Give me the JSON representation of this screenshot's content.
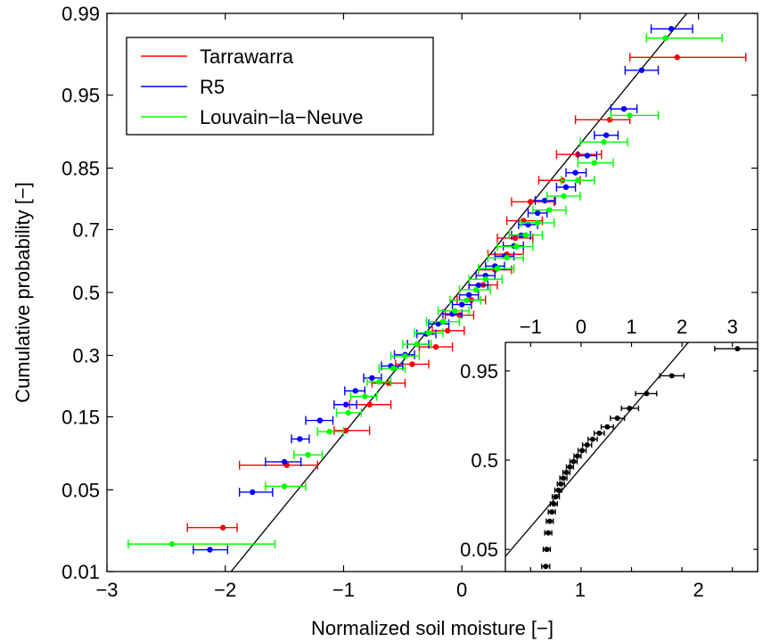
{
  "chart_data": [
    {
      "type": "scatter",
      "title": "",
      "xlabel": "Normalized soil moisture [−]",
      "ylabel": "Cumulative probability [−]",
      "xlim": [
        -3,
        2.5
      ],
      "ylim": [
        0.01,
        0.99
      ],
      "yscale": "normal-probability",
      "x_ticks": [
        -3,
        -2,
        -1,
        0,
        1,
        2
      ],
      "x_tick_labels": [
        "−3",
        "−2",
        "−1",
        "0",
        "1",
        "2"
      ],
      "y_ticks": [
        0.01,
        0.05,
        0.15,
        0.3,
        0.5,
        0.7,
        0.85,
        0.95,
        0.99
      ],
      "y_tick_labels": [
        "0.01",
        "0.05",
        "0.15",
        "0.3",
        "0.5",
        "0.7",
        "0.85",
        "0.95",
        "0.99"
      ],
      "grid": false,
      "legend_position": "top-left",
      "reference_line": {
        "description": "",
        "points": [
          [
            -2.13,
            0.0055
          ],
          [
            2.25,
            0.997
          ]
        ]
      },
      "error_bars": "horizontal",
      "series": [
        {
          "name": "Tarrawarra",
          "color": "#ff0000",
          "points": [
            {
              "x": -2.02,
              "p": 0.025,
              "lo": -2.32,
              "hi": -1.9
            },
            {
              "x": -1.48,
              "p": 0.075,
              "lo": -1.88,
              "hi": -1.22
            },
            {
              "x": -0.98,
              "p": 0.125,
              "lo": -1.08,
              "hi": -0.78
            },
            {
              "x": -0.78,
              "p": 0.175,
              "lo": -0.95,
              "hi": -0.6
            },
            {
              "x": -0.62,
              "p": 0.225,
              "lo": -0.76,
              "hi": -0.48
            },
            {
              "x": -0.42,
              "p": 0.275,
              "lo": -0.56,
              "hi": -0.28
            },
            {
              "x": -0.22,
              "p": 0.325,
              "lo": -0.36,
              "hi": -0.08
            },
            {
              "x": -0.12,
              "p": 0.375,
              "lo": -0.25,
              "hi": 0.02
            },
            {
              "x": -0.02,
              "p": 0.425,
              "lo": -0.14,
              "hi": 0.1
            },
            {
              "x": 0.08,
              "p": 0.475,
              "lo": -0.04,
              "hi": 0.2
            },
            {
              "x": 0.18,
              "p": 0.525,
              "lo": 0.06,
              "hi": 0.3
            },
            {
              "x": 0.28,
              "p": 0.575,
              "lo": 0.14,
              "hi": 0.42
            },
            {
              "x": 0.38,
              "p": 0.625,
              "lo": 0.22,
              "hi": 0.52
            },
            {
              "x": 0.45,
              "p": 0.675,
              "lo": 0.3,
              "hi": 0.6
            },
            {
              "x": 0.52,
              "p": 0.725,
              "lo": 0.38,
              "hi": 0.68
            },
            {
              "x": 0.58,
              "p": 0.775,
              "lo": 0.42,
              "hi": 0.78
            },
            {
              "x": 0.85,
              "p": 0.825,
              "lo": 0.65,
              "hi": 1.0
            },
            {
              "x": 0.98,
              "p": 0.875,
              "lo": 0.8,
              "hi": 1.18
            },
            {
              "x": 1.25,
              "p": 0.925,
              "lo": 0.96,
              "hi": 1.42
            },
            {
              "x": 1.82,
              "p": 0.975,
              "lo": 1.42,
              "hi": 2.4
            }
          ]
        },
        {
          "name": "R5",
          "color": "#0000ff",
          "points": [
            {
              "x": -2.13,
              "p": 0.016,
              "lo": -2.27,
              "hi": -1.98
            },
            {
              "x": -1.77,
              "p": 0.048,
              "lo": -1.88,
              "hi": -1.6
            },
            {
              "x": -1.5,
              "p": 0.079,
              "lo": -1.66,
              "hi": -1.36
            },
            {
              "x": -1.37,
              "p": 0.111,
              "lo": -1.44,
              "hi": -1.29
            },
            {
              "x": -1.2,
              "p": 0.143,
              "lo": -1.32,
              "hi": -1.09
            },
            {
              "x": -0.98,
              "p": 0.175,
              "lo": -1.08,
              "hi": -0.89
            },
            {
              "x": -0.9,
              "p": 0.206,
              "lo": -0.99,
              "hi": -0.82
            },
            {
              "x": -0.76,
              "p": 0.238,
              "lo": -0.83,
              "hi": -0.68
            },
            {
              "x": -0.6,
              "p": 0.27,
              "lo": -0.68,
              "hi": -0.5
            },
            {
              "x": -0.48,
              "p": 0.302,
              "lo": -0.57,
              "hi": -0.4
            },
            {
              "x": -0.38,
              "p": 0.333,
              "lo": -0.46,
              "hi": -0.28
            },
            {
              "x": -0.3,
              "p": 0.365,
              "lo": -0.38,
              "hi": -0.22
            },
            {
              "x": -0.2,
              "p": 0.397,
              "lo": -0.28,
              "hi": -0.11
            },
            {
              "x": -0.08,
              "p": 0.429,
              "lo": -0.16,
              "hi": 0.0
            },
            {
              "x": 0.0,
              "p": 0.46,
              "lo": -0.08,
              "hi": 0.08
            },
            {
              "x": 0.06,
              "p": 0.492,
              "lo": -0.02,
              "hi": 0.14
            },
            {
              "x": 0.14,
              "p": 0.524,
              "lo": 0.06,
              "hi": 0.22
            },
            {
              "x": 0.2,
              "p": 0.556,
              "lo": 0.12,
              "hi": 0.28
            },
            {
              "x": 0.28,
              "p": 0.587,
              "lo": 0.2,
              "hi": 0.36
            },
            {
              "x": 0.36,
              "p": 0.619,
              "lo": 0.28,
              "hi": 0.44
            },
            {
              "x": 0.44,
              "p": 0.651,
              "lo": 0.35,
              "hi": 0.52
            },
            {
              "x": 0.5,
              "p": 0.683,
              "lo": 0.42,
              "hi": 0.58
            },
            {
              "x": 0.56,
              "p": 0.714,
              "lo": 0.48,
              "hi": 0.64
            },
            {
              "x": 0.64,
              "p": 0.746,
              "lo": 0.56,
              "hi": 0.72
            },
            {
              "x": 0.7,
              "p": 0.778,
              "lo": 0.62,
              "hi": 0.79
            },
            {
              "x": 0.88,
              "p": 0.81,
              "lo": 0.8,
              "hi": 0.96
            },
            {
              "x": 0.96,
              "p": 0.841,
              "lo": 0.88,
              "hi": 1.05
            },
            {
              "x": 1.06,
              "p": 0.873,
              "lo": 0.98,
              "hi": 1.14
            },
            {
              "x": 1.22,
              "p": 0.905,
              "lo": 1.12,
              "hi": 1.32
            },
            {
              "x": 1.37,
              "p": 0.937,
              "lo": 1.26,
              "hi": 1.48
            },
            {
              "x": 1.52,
              "p": 0.968,
              "lo": 1.38,
              "hi": 1.66
            },
            {
              "x": 1.77,
              "p": 0.986,
              "lo": 1.6,
              "hi": 1.95
            }
          ]
        },
        {
          "name": "Louvain−la−Neuve",
          "color": "#00ff00",
          "points": [
            {
              "x": -2.45,
              "p": 0.018,
              "lo": -2.82,
              "hi": -1.58
            },
            {
              "x": -1.5,
              "p": 0.053,
              "lo": -1.66,
              "hi": -1.32
            },
            {
              "x": -1.3,
              "p": 0.088,
              "lo": -1.42,
              "hi": -1.18
            },
            {
              "x": -1.12,
              "p": 0.123,
              "lo": -1.22,
              "hi": -1.0
            },
            {
              "x": -0.96,
              "p": 0.158,
              "lo": -1.06,
              "hi": -0.85
            },
            {
              "x": -0.82,
              "p": 0.193,
              "lo": -0.94,
              "hi": -0.72
            },
            {
              "x": -0.7,
              "p": 0.228,
              "lo": -0.8,
              "hi": -0.6
            },
            {
              "x": -0.58,
              "p": 0.263,
              "lo": -0.7,
              "hi": -0.48
            },
            {
              "x": -0.48,
              "p": 0.298,
              "lo": -0.6,
              "hi": -0.36
            },
            {
              "x": -0.38,
              "p": 0.333,
              "lo": -0.5,
              "hi": -0.26
            },
            {
              "x": -0.28,
              "p": 0.368,
              "lo": -0.4,
              "hi": -0.16
            },
            {
              "x": -0.16,
              "p": 0.404,
              "lo": -0.3,
              "hi": -0.02
            },
            {
              "x": -0.06,
              "p": 0.439,
              "lo": -0.2,
              "hi": 0.06
            },
            {
              "x": 0.04,
              "p": 0.474,
              "lo": -0.1,
              "hi": 0.16
            },
            {
              "x": 0.12,
              "p": 0.509,
              "lo": -0.02,
              "hi": 0.24
            },
            {
              "x": 0.2,
              "p": 0.544,
              "lo": 0.06,
              "hi": 0.34
            },
            {
              "x": 0.3,
              "p": 0.579,
              "lo": 0.14,
              "hi": 0.44
            },
            {
              "x": 0.38,
              "p": 0.614,
              "lo": 0.22,
              "hi": 0.52
            },
            {
              "x": 0.46,
              "p": 0.649,
              "lo": 0.3,
              "hi": 0.6
            },
            {
              "x": 0.54,
              "p": 0.684,
              "lo": 0.4,
              "hi": 0.68
            },
            {
              "x": 0.64,
              "p": 0.719,
              "lo": 0.5,
              "hi": 0.78
            },
            {
              "x": 0.74,
              "p": 0.754,
              "lo": 0.6,
              "hi": 0.88
            },
            {
              "x": 0.86,
              "p": 0.789,
              "lo": 0.72,
              "hi": 1.0
            },
            {
              "x": 0.98,
              "p": 0.825,
              "lo": 0.84,
              "hi": 1.12
            },
            {
              "x": 1.12,
              "p": 0.86,
              "lo": 0.98,
              "hi": 1.28
            },
            {
              "x": 1.2,
              "p": 0.895,
              "lo": 1.0,
              "hi": 1.4
            },
            {
              "x": 1.42,
              "p": 0.93,
              "lo": 1.26,
              "hi": 1.66
            },
            {
              "x": 1.72,
              "p": 0.983,
              "lo": 1.56,
              "hi": 2.2
            }
          ]
        }
      ]
    },
    {
      "type": "scatter",
      "title": "",
      "xlabel": "",
      "ylabel": "",
      "xlim": [
        -1.5,
        3.5
      ],
      "ylim": [
        0.02,
        0.985
      ],
      "yscale": "normal-probability",
      "x_axis_position": "top",
      "x_ticks": [
        -1,
        0,
        1,
        2,
        3
      ],
      "x_tick_labels": [
        "−1",
        "0",
        "1",
        "2",
        "3"
      ],
      "y_ticks": [
        0.05,
        0.5,
        0.95
      ],
      "y_tick_labels": [
        "0.05",
        "0.5",
        "0.95"
      ],
      "grid": false,
      "reference_line": {
        "description": "",
        "points": [
          [
            -1.5,
            0.038
          ],
          [
            2.5,
            0.995
          ]
        ]
      },
      "error_bars": "horizontal",
      "series": [
        {
          "name": "",
          "color": "#000000",
          "points": [
            {
              "x": -0.7,
              "p": 0.025,
              "lo": -0.78,
              "hi": -0.62
            },
            {
              "x": -0.68,
              "p": 0.05,
              "lo": -0.75,
              "hi": -0.61
            },
            {
              "x": -0.65,
              "p": 0.09,
              "lo": -0.72,
              "hi": -0.58
            },
            {
              "x": -0.62,
              "p": 0.13,
              "lo": -0.69,
              "hi": -0.55
            },
            {
              "x": -0.58,
              "p": 0.17,
              "lo": -0.65,
              "hi": -0.51
            },
            {
              "x": -0.54,
              "p": 0.21,
              "lo": -0.61,
              "hi": -0.47
            },
            {
              "x": -0.5,
              "p": 0.25,
              "lo": -0.57,
              "hi": -0.43
            },
            {
              "x": -0.45,
              "p": 0.29,
              "lo": -0.52,
              "hi": -0.38
            },
            {
              "x": -0.4,
              "p": 0.33,
              "lo": -0.47,
              "hi": -0.33
            },
            {
              "x": -0.35,
              "p": 0.37,
              "lo": -0.42,
              "hi": -0.28
            },
            {
              "x": -0.29,
              "p": 0.41,
              "lo": -0.36,
              "hi": -0.22
            },
            {
              "x": -0.22,
              "p": 0.45,
              "lo": -0.29,
              "hi": -0.15
            },
            {
              "x": -0.15,
              "p": 0.49,
              "lo": -0.22,
              "hi": -0.08
            },
            {
              "x": -0.07,
              "p": 0.53,
              "lo": -0.14,
              "hi": 0.0
            },
            {
              "x": 0.02,
              "p": 0.57,
              "lo": -0.06,
              "hi": 0.1
            },
            {
              "x": 0.12,
              "p": 0.61,
              "lo": 0.03,
              "hi": 0.21
            },
            {
              "x": 0.23,
              "p": 0.65,
              "lo": 0.14,
              "hi": 0.32
            },
            {
              "x": 0.36,
              "p": 0.69,
              "lo": 0.26,
              "hi": 0.46
            },
            {
              "x": 0.52,
              "p": 0.73,
              "lo": 0.4,
              "hi": 0.64
            },
            {
              "x": 0.72,
              "p": 0.78,
              "lo": 0.58,
              "hi": 0.86
            },
            {
              "x": 0.96,
              "p": 0.83,
              "lo": 0.8,
              "hi": 1.14
            },
            {
              "x": 1.3,
              "p": 0.89,
              "lo": 1.08,
              "hi": 1.5
            },
            {
              "x": 1.8,
              "p": 0.94,
              "lo": 1.56,
              "hi": 2.04
            },
            {
              "x": 3.1,
              "p": 0.98,
              "lo": 2.65,
              "hi": 3.55
            }
          ]
        }
      ]
    }
  ]
}
